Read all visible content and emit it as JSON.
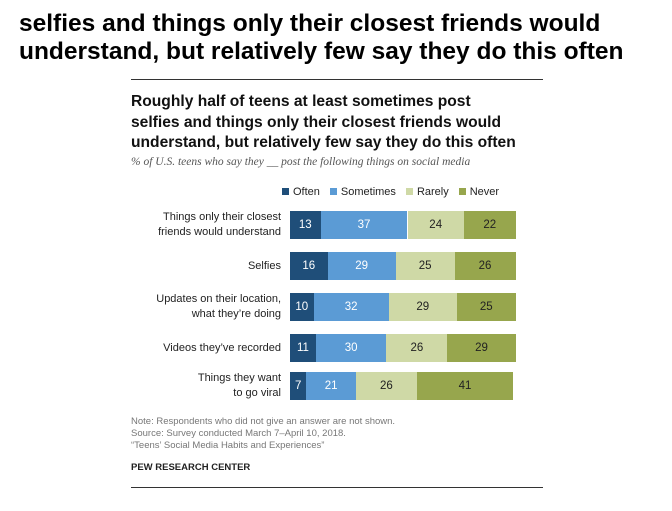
{
  "headline": {
    "line1": "selfies and things only their closest friends would",
    "line2": "understand, but relatively few say they do this often"
  },
  "chart_data": {
    "type": "bar",
    "orientation": "horizontal",
    "stacked": true,
    "title_lines": [
      "Roughly half of teens at least sometimes post",
      "selfies and things only their closest friends would",
      "understand, but relatively few say they do this often"
    ],
    "subtitle": "% of U.S. teens who say they __ post the following things on social media",
    "categories": [
      [
        "Things only their closest",
        "friends would understand"
      ],
      [
        "Selfies"
      ],
      [
        "Updates on their location,",
        "what they’re doing"
      ],
      [
        "Videos they’ve recorded"
      ],
      [
        "Things they want",
        "to go viral"
      ]
    ],
    "series": [
      {
        "name": "Often",
        "color": "#1f4e79",
        "label_color": "#ffffff",
        "values": [
          13,
          16,
          10,
          11,
          7
        ]
      },
      {
        "name": "Sometimes",
        "color": "#5b9bd5",
        "label_color": "#ffffff",
        "values": [
          37,
          29,
          32,
          30,
          21
        ]
      },
      {
        "name": "Rarely",
        "color": "#cfd9a6",
        "label_color": "#222222",
        "values": [
          24,
          25,
          29,
          26,
          26
        ]
      },
      {
        "name": "Never",
        "color": "#97a64d",
        "label_color": "#222222",
        "values": [
          22,
          26,
          25,
          29,
          41
        ]
      }
    ],
    "legend_position": "top",
    "xlim": [
      0,
      100
    ]
  },
  "notes": {
    "line1": "Note: Respondents who did not give an answer are not shown.",
    "line2": "Source: Survey conducted March 7–April 10, 2018.",
    "line3": "“Teens’ Social Media Habits and Experiences”"
  },
  "source_org": "PEW RESEARCH CENTER"
}
